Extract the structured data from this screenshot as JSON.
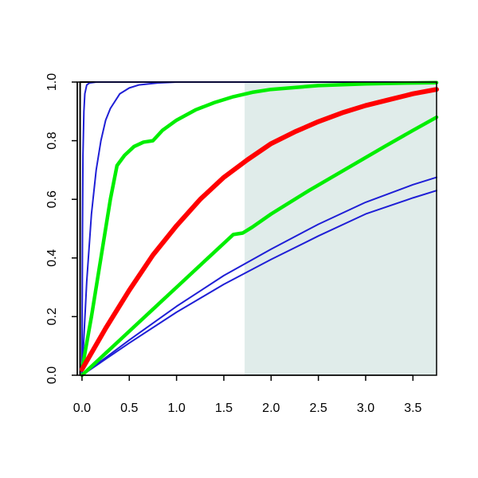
{
  "chart_data": {
    "type": "line",
    "title": "",
    "xlabel": "",
    "ylabel": "",
    "xlim": [
      -0.05,
      3.75
    ],
    "ylim": [
      0.0,
      1.0
    ],
    "x_ticks": [
      0.0,
      0.5,
      1.0,
      1.5,
      2.0,
      2.5,
      3.0,
      3.5
    ],
    "x_tick_labels": [
      "0.0",
      "0.5",
      "1.0",
      "1.5",
      "2.0",
      "2.5",
      "3.0",
      "3.5"
    ],
    "y_ticks": [
      0.0,
      0.2,
      0.4,
      0.6,
      0.8,
      1.0
    ],
    "y_tick_labels": [
      "0.0",
      "0.2",
      "0.4",
      "0.6",
      "0.8",
      "1.0"
    ],
    "grid": false,
    "legend": "none",
    "shaded_region": {
      "x_from": 1.72,
      "x_to": 3.75,
      "y_from": 0.0,
      "y_to": 1.0,
      "color": "#e0ecea"
    },
    "series": [
      {
        "color": "#000000",
        "width": 2,
        "points": [
          [
            -0.02,
            0.0
          ],
          [
            -0.02,
            1.0
          ],
          [
            3.75,
            1.0
          ]
        ]
      },
      {
        "color": "#1f1fd6",
        "width": 2,
        "points": [
          [
            0.0,
            0.0
          ],
          [
            0.005,
            0.5
          ],
          [
            0.01,
            0.75
          ],
          [
            0.02,
            0.9
          ],
          [
            0.03,
            0.96
          ],
          [
            0.05,
            0.99
          ],
          [
            0.08,
            0.997
          ],
          [
            0.15,
            1.0
          ],
          [
            3.75,
            1.0
          ]
        ]
      },
      {
        "color": "#1f1fd6",
        "width": 2,
        "points": [
          [
            0.0,
            0.0
          ],
          [
            0.05,
            0.32
          ],
          [
            0.1,
            0.55
          ],
          [
            0.15,
            0.7
          ],
          [
            0.2,
            0.8
          ],
          [
            0.25,
            0.87
          ],
          [
            0.3,
            0.91
          ],
          [
            0.4,
            0.96
          ],
          [
            0.5,
            0.98
          ],
          [
            0.6,
            0.99
          ],
          [
            0.8,
            0.997
          ],
          [
            1.0,
            1.0
          ],
          [
            3.75,
            1.0
          ]
        ]
      },
      {
        "color": "#1f1fd6",
        "width": 2,
        "points": [
          [
            0.0,
            0.0
          ],
          [
            0.5,
            0.12
          ],
          [
            1.0,
            0.235
          ],
          [
            1.5,
            0.34
          ],
          [
            2.0,
            0.43
          ],
          [
            2.5,
            0.515
          ],
          [
            3.0,
            0.59
          ],
          [
            3.5,
            0.65
          ],
          [
            3.75,
            0.675
          ]
        ]
      },
      {
        "color": "#1f1fd6",
        "width": 2,
        "points": [
          [
            0.0,
            0.0
          ],
          [
            0.5,
            0.11
          ],
          [
            1.0,
            0.215
          ],
          [
            1.5,
            0.31
          ],
          [
            2.0,
            0.395
          ],
          [
            2.5,
            0.475
          ],
          [
            3.0,
            0.55
          ],
          [
            3.5,
            0.605
          ],
          [
            3.75,
            0.63
          ]
        ]
      },
      {
        "color": "#00ee00",
        "width": 4.5,
        "points": [
          [
            0.0,
            0.02
          ],
          [
            0.1,
            0.2
          ],
          [
            0.2,
            0.4
          ],
          [
            0.3,
            0.6
          ],
          [
            0.37,
            0.715
          ],
          [
            0.45,
            0.75
          ],
          [
            0.55,
            0.78
          ],
          [
            0.65,
            0.795
          ],
          [
            0.75,
            0.8
          ],
          [
            0.85,
            0.835
          ],
          [
            1.0,
            0.87
          ],
          [
            1.2,
            0.905
          ],
          [
            1.4,
            0.93
          ],
          [
            1.6,
            0.95
          ],
          [
            1.8,
            0.965
          ],
          [
            2.0,
            0.975
          ],
          [
            2.5,
            0.988
          ],
          [
            3.0,
            0.994
          ],
          [
            3.5,
            0.997
          ],
          [
            3.75,
            0.998
          ]
        ]
      },
      {
        "color": "#00ee00",
        "width": 4.5,
        "points": [
          [
            0.0,
            0.0
          ],
          [
            0.2,
            0.06
          ],
          [
            0.4,
            0.12
          ],
          [
            0.6,
            0.18
          ],
          [
            0.8,
            0.24
          ],
          [
            1.0,
            0.3
          ],
          [
            1.2,
            0.36
          ],
          [
            1.4,
            0.42
          ],
          [
            1.6,
            0.48
          ],
          [
            1.7,
            0.485
          ],
          [
            1.8,
            0.505
          ],
          [
            2.0,
            0.55
          ],
          [
            2.4,
            0.63
          ],
          [
            2.8,
            0.705
          ],
          [
            3.2,
            0.78
          ],
          [
            3.5,
            0.835
          ],
          [
            3.75,
            0.88
          ]
        ]
      },
      {
        "color": "#ff0000",
        "width": 6,
        "points": [
          [
            0.0,
            0.02
          ],
          [
            0.25,
            0.16
          ],
          [
            0.5,
            0.29
          ],
          [
            0.75,
            0.41
          ],
          [
            1.0,
            0.51
          ],
          [
            1.25,
            0.6
          ],
          [
            1.5,
            0.675
          ],
          [
            1.75,
            0.735
          ],
          [
            2.0,
            0.79
          ],
          [
            2.25,
            0.83
          ],
          [
            2.5,
            0.865
          ],
          [
            2.75,
            0.895
          ],
          [
            3.0,
            0.92
          ],
          [
            3.25,
            0.94
          ],
          [
            3.5,
            0.96
          ],
          [
            3.75,
            0.975
          ]
        ]
      }
    ]
  }
}
